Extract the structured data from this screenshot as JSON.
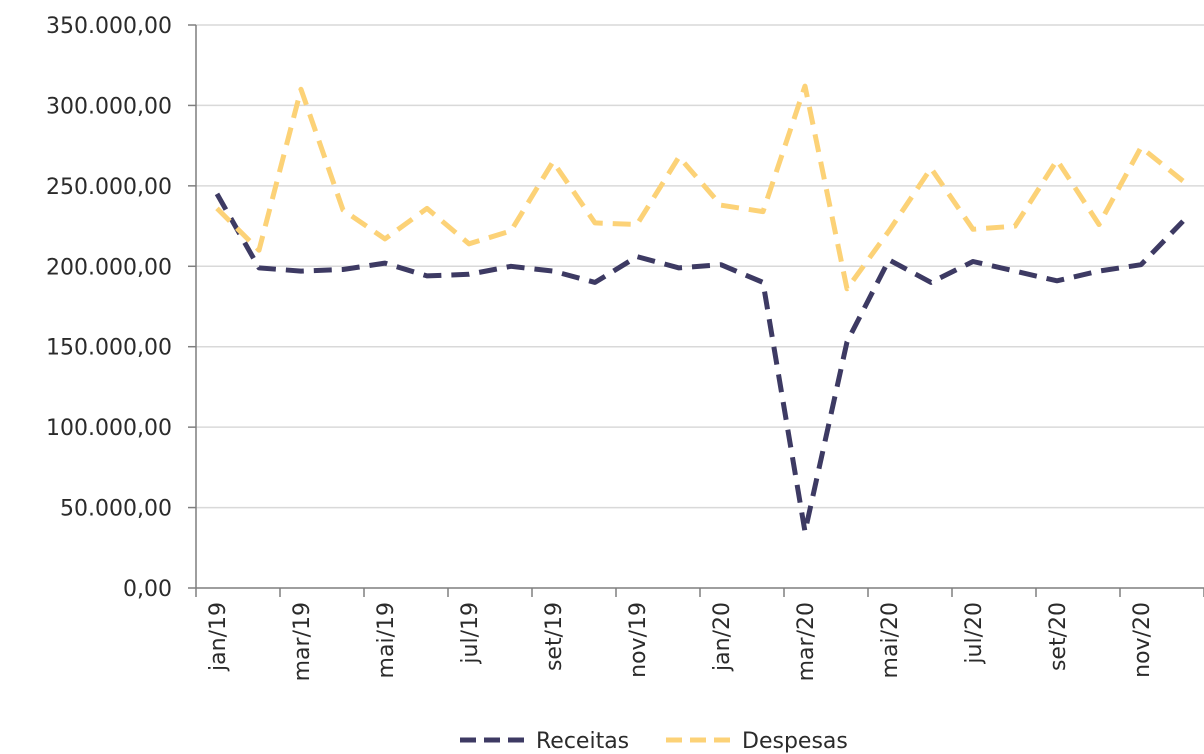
{
  "chart_data": {
    "type": "line",
    "title": "",
    "xlabel": "",
    "ylabel": "",
    "ylim": [
      0,
      350000
    ],
    "yticks": [
      "0,00",
      "50.000,00",
      "100.000,00",
      "150.000,00",
      "200.000,00",
      "250.000,00",
      "300.000,00",
      "350.000,00"
    ],
    "ytick_values": [
      0,
      50000,
      100000,
      150000,
      200000,
      250000,
      300000,
      350000
    ],
    "x": [
      "jan/19",
      "fev/19",
      "mar/19",
      "abr/19",
      "mai/19",
      "jun/19",
      "jul/19",
      "ago/19",
      "set/19",
      "out/19",
      "nov/19",
      "dez/19",
      "jan/20",
      "fev/20",
      "mar/20",
      "abr/20",
      "mai/20",
      "jun/20",
      "jul/20",
      "ago/20",
      "set/20",
      "out/20",
      "nov/20",
      "dez/20"
    ],
    "xtick_labels": [
      "jan/19",
      "mar/19",
      "mai/19",
      "jul/19",
      "set/19",
      "nov/19",
      "jan/20",
      "mar/20",
      "mai/20",
      "jul/20",
      "set/20",
      "nov/20"
    ],
    "grid": true,
    "legend_position": "bottom",
    "series": [
      {
        "name": "Receitas",
        "color": "#3d3a63",
        "style": "dashed",
        "values": [
          245000,
          199000,
          197000,
          198000,
          202000,
          194000,
          195000,
          200000,
          197000,
          190000,
          206000,
          199000,
          201000,
          190000,
          35000,
          153000,
          204000,
          190000,
          203000,
          197000,
          191000,
          197000,
          201000,
          228000
        ]
      },
      {
        "name": "Despesas",
        "color": "#fcd277",
        "style": "dashed",
        "values": [
          236000,
          210000,
          310000,
          235000,
          217000,
          236000,
          214000,
          222000,
          265000,
          227000,
          226000,
          268000,
          238000,
          234000,
          312000,
          186000,
          222000,
          261000,
          223000,
          225000,
          266000,
          226000,
          274000,
          253000
        ]
      }
    ]
  }
}
